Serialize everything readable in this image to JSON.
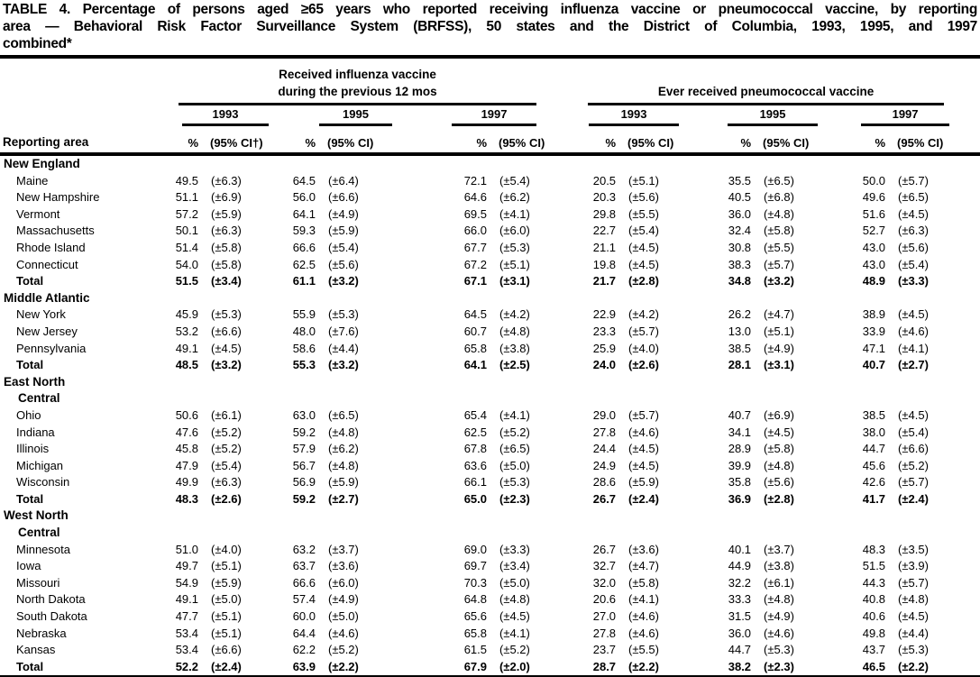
{
  "title_lines": [
    "TABLE 4. Percentage of persons aged ≥65 years who reported receiving influenza vaccine or pneumococcal vaccine, by reporting",
    "area — Behavioral Risk Factor Surveillance System (BRFSS), 50 states and the District of Columbia, 1993, 1995, and 1997",
    "combined*"
  ],
  "table": {
    "row_header": "Reporting area",
    "influenza_header_line1": "Received influenza vaccine",
    "influenza_header_line2": "during the previous 12 mos",
    "pneumococcal_header": "Ever received pneumococcal vaccine",
    "years_influenza": [
      "1993",
      "1995",
      "1997"
    ],
    "years_pneumococcal": [
      "1993",
      "1995",
      "1997"
    ],
    "pct_label": "%",
    "ci_label": "(95% CI)",
    "ci_label_first": "(95% CI†)",
    "regions": [
      {
        "name": "New England",
        "rows": [
          {
            "area": "Maine",
            "v": [
              "49.5",
              "(±6.3)",
              "64.5",
              "(±6.4)",
              "72.1",
              "(±5.4)",
              "20.5",
              "(±5.1)",
              "35.5",
              "(±6.5)",
              "50.0",
              "(±5.7)"
            ]
          },
          {
            "area": "New Hampshire",
            "v": [
              "51.1",
              "(±6.9)",
              "56.0",
              "(±6.6)",
              "64.6",
              "(±6.2)",
              "20.3",
              "(±5.6)",
              "40.5",
              "(±6.8)",
              "49.6",
              "(±6.5)"
            ]
          },
          {
            "area": "Vermont",
            "v": [
              "57.2",
              "(±5.9)",
              "64.1",
              "(±4.9)",
              "69.5",
              "(±4.1)",
              "29.8",
              "(±5.5)",
              "36.0",
              "(±4.8)",
              "51.6",
              "(±4.5)"
            ]
          },
          {
            "area": "Massachusetts",
            "v": [
              "50.1",
              "(±6.3)",
              "59.3",
              "(±5.9)",
              "66.0",
              "(±6.0)",
              "22.7",
              "(±5.4)",
              "32.4",
              "(±5.8)",
              "52.7",
              "(±6.3)"
            ]
          },
          {
            "area": "Rhode Island",
            "v": [
              "51.4",
              "(±5.8)",
              "66.6",
              "(±5.4)",
              "67.7",
              "(±5.3)",
              "21.1",
              "(±4.5)",
              "30.8",
              "(±5.5)",
              "43.0",
              "(±5.6)"
            ]
          },
          {
            "area": "Connecticut",
            "v": [
              "54.0",
              "(±5.8)",
              "62.5",
              "(±5.6)",
              "67.2",
              "(±5.1)",
              "19.8",
              "(±4.5)",
              "38.3",
              "(±5.7)",
              "43.0",
              "(±5.4)"
            ]
          },
          {
            "area": "Total",
            "bold": true,
            "v": [
              "51.5",
              "(±3.4)",
              "61.1",
              "(±3.2)",
              "67.1",
              "(±3.1)",
              "21.7",
              "(±2.8)",
              "34.8",
              "(±3.2)",
              "48.9",
              "(±3.3)"
            ]
          }
        ]
      },
      {
        "name": "Middle Atlantic",
        "rows": [
          {
            "area": "New York",
            "v": [
              "45.9",
              "(±5.3)",
              "55.9",
              "(±5.3)",
              "64.5",
              "(±4.2)",
              "22.9",
              "(±4.2)",
              "26.2",
              "(±4.7)",
              "38.9",
              "(±4.5)"
            ]
          },
          {
            "area": "New Jersey",
            "v": [
              "53.2",
              "(±6.6)",
              "48.0",
              "(±7.6)",
              "60.7",
              "(±4.8)",
              "23.3",
              "(±5.7)",
              "13.0",
              "(±5.1)",
              "33.9",
              "(±4.6)"
            ]
          },
          {
            "area": "Pennsylvania",
            "v": [
              "49.1",
              "(±4.5)",
              "58.6",
              "(±4.4)",
              "65.8",
              "(±3.8)",
              "25.9",
              "(±4.0)",
              "38.5",
              "(±4.9)",
              "47.1",
              "(±4.1)"
            ]
          },
          {
            "area": "Total",
            "bold": true,
            "v": [
              "48.5",
              "(±3.2)",
              "55.3",
              "(±3.2)",
              "64.1",
              "(±2.5)",
              "24.0",
              "(±2.6)",
              "28.1",
              "(±3.1)",
              "40.7",
              "(±2.7)"
            ]
          }
        ]
      },
      {
        "name": "East North Central",
        "rows": [
          {
            "area": "Ohio",
            "v": [
              "50.6",
              "(±6.1)",
              "63.0",
              "(±6.5)",
              "65.4",
              "(±4.1)",
              "29.0",
              "(±5.7)",
              "40.7",
              "(±6.9)",
              "38.5",
              "(±4.5)"
            ]
          },
          {
            "area": "Indiana",
            "v": [
              "47.6",
              "(±5.2)",
              "59.2",
              "(±4.8)",
              "62.5",
              "(±5.2)",
              "27.8",
              "(±4.6)",
              "34.1",
              "(±4.5)",
              "38.0",
              "(±5.4)"
            ]
          },
          {
            "area": "Illinois",
            "v": [
              "45.8",
              "(±5.2)",
              "57.9",
              "(±6.2)",
              "67.8",
              "(±6.5)",
              "24.4",
              "(±4.5)",
              "28.9",
              "(±5.8)",
              "44.7",
              "(±6.6)"
            ]
          },
          {
            "area": "Michigan",
            "v": [
              "47.9",
              "(±5.4)",
              "56.7",
              "(±4.8)",
              "63.6",
              "(±5.0)",
              "24.9",
              "(±4.5)",
              "39.9",
              "(±4.8)",
              "45.6",
              "(±5.2)"
            ]
          },
          {
            "area": "Wisconsin",
            "v": [
              "49.9",
              "(±6.3)",
              "56.9",
              "(±5.9)",
              "66.1",
              "(±5.3)",
              "28.6",
              "(±5.9)",
              "35.8",
              "(±5.6)",
              "42.6",
              "(±5.7)"
            ]
          },
          {
            "area": "Total",
            "bold": true,
            "v": [
              "48.3",
              "(±2.6)",
              "59.2",
              "(±2.7)",
              "65.0",
              "(±2.3)",
              "26.7",
              "(±2.4)",
              "36.9",
              "(±2.8)",
              "41.7",
              "(±2.4)"
            ]
          }
        ]
      },
      {
        "name": "West North Central",
        "rows": [
          {
            "area": "Minnesota",
            "v": [
              "51.0",
              "(±4.0)",
              "63.2",
              "(±3.7)",
              "69.0",
              "(±3.3)",
              "26.7",
              "(±3.6)",
              "40.1",
              "(±3.7)",
              "48.3",
              "(±3.5)"
            ]
          },
          {
            "area": "Iowa",
            "v": [
              "49.7",
              "(±5.1)",
              "63.7",
              "(±3.6)",
              "69.7",
              "(±3.4)",
              "32.7",
              "(±4.7)",
              "44.9",
              "(±3.8)",
              "51.5",
              "(±3.9)"
            ]
          },
          {
            "area": "Missouri",
            "v": [
              "54.9",
              "(±5.9)",
              "66.6",
              "(±6.0)",
              "70.3",
              "(±5.0)",
              "32.0",
              "(±5.8)",
              "32.2",
              "(±6.1)",
              "44.3",
              "(±5.7)"
            ]
          },
          {
            "area": "North Dakota",
            "v": [
              "49.1",
              "(±5.0)",
              "57.4",
              "(±4.9)",
              "64.8",
              "(±4.8)",
              "20.6",
              "(±4.1)",
              "33.3",
              "(±4.8)",
              "40.8",
              "(±4.8)"
            ]
          },
          {
            "area": "South Dakota",
            "v": [
              "47.7",
              "(±5.1)",
              "60.0",
              "(±5.0)",
              "65.6",
              "(±4.5)",
              "27.0",
              "(±4.6)",
              "31.5",
              "(±4.9)",
              "40.6",
              "(±4.5)"
            ]
          },
          {
            "area": "Nebraska",
            "v": [
              "53.4",
              "(±5.1)",
              "64.4",
              "(±4.6)",
              "65.8",
              "(±4.1)",
              "27.8",
              "(±4.6)",
              "36.0",
              "(±4.6)",
              "49.8",
              "(±4.4)"
            ]
          },
          {
            "area": "Kansas",
            "v": [
              "53.4",
              "(±6.6)",
              "62.2",
              "(±5.2)",
              "61.5",
              "(±5.2)",
              "23.7",
              "(±5.5)",
              "44.7",
              "(±5.3)",
              "43.7",
              "(±5.3)"
            ]
          },
          {
            "area": "Total",
            "bold": true,
            "v": [
              "52.2",
              "(±2.4)",
              "63.9",
              "(±2.2)",
              "67.9",
              "(±2.0)",
              "28.7",
              "(±2.2)",
              "38.2",
              "(±2.3)",
              "46.5",
              "(±2.2)"
            ]
          }
        ]
      }
    ]
  }
}
